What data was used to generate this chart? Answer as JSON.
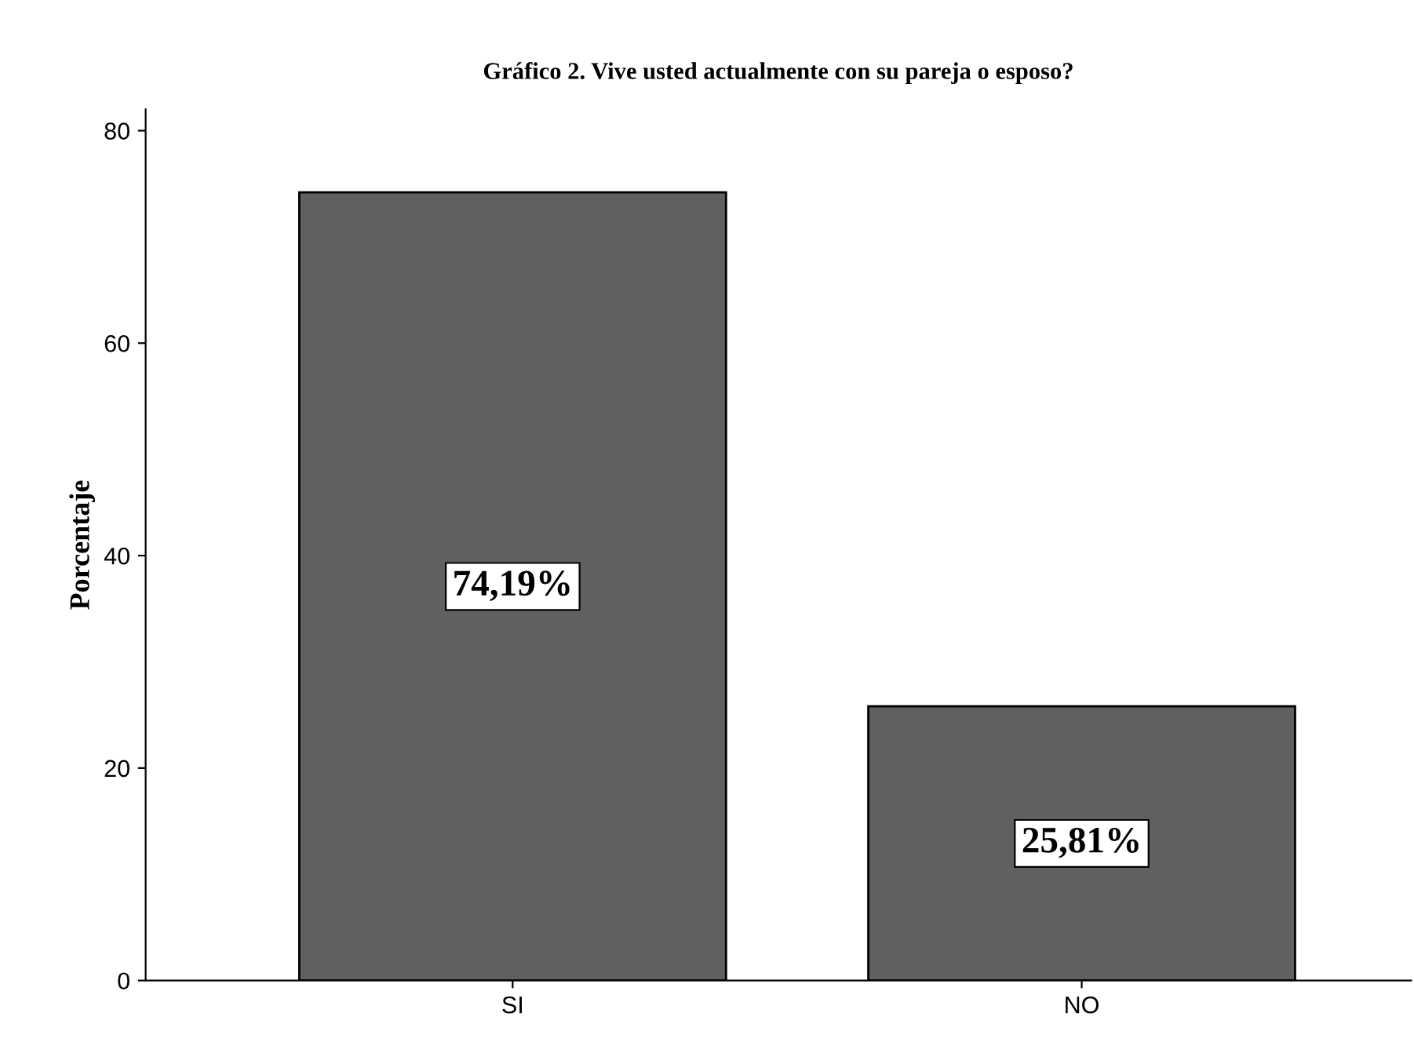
{
  "chart_data": {
    "type": "bar",
    "title": "Gráfico 2. Vive usted actualmente con su pareja o esposo?",
    "ylabel": "Porcentaje",
    "categories": [
      "SI",
      "NO"
    ],
    "values": [
      74.19,
      25.81
    ],
    "color": "#606060",
    "value_labels": [
      "74,19%",
      "25,81%"
    ],
    "ylim": [
      0,
      82
    ],
    "yticks": [
      0,
      20,
      40,
      60,
      80
    ],
    "grid": false,
    "legend": false
  }
}
